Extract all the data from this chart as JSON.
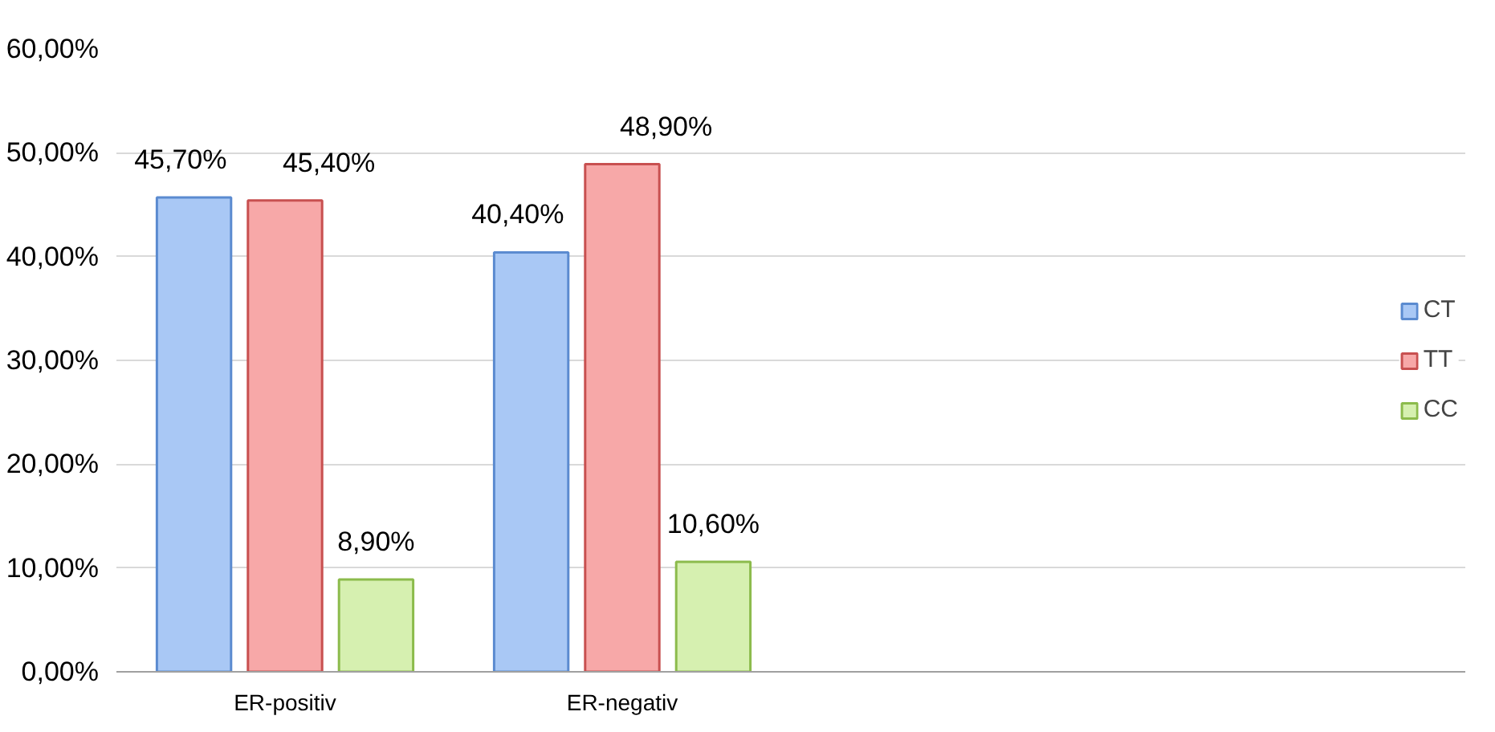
{
  "chart_data": {
    "type": "bar",
    "categories": [
      "ER-positiv",
      "ER-negativ",
      null,
      null
    ],
    "series": [
      {
        "name": "CT",
        "color": "#a9c8f5",
        "values": [
          45.7,
          40.4,
          null,
          null
        ],
        "value_labels": [
          "45,70%",
          "40,40%",
          null,
          null
        ]
      },
      {
        "name": "TT",
        "color": "#f7a8a8",
        "values": [
          45.4,
          48.9,
          null,
          null
        ],
        "value_labels": [
          "45,40%",
          "48,90%",
          null,
          null
        ]
      },
      {
        "name": "CC",
        "color": "#d6f0b0",
        "values": [
          8.9,
          10.6,
          null,
          null
        ],
        "value_labels": [
          "8,90%",
          "10,60%",
          null,
          null
        ]
      }
    ],
    "ylim": [
      0,
      60
    ],
    "yticks": [
      {
        "value": 0,
        "label": "0,00%"
      },
      {
        "value": 10,
        "label": "10,00%"
      },
      {
        "value": 20,
        "label": "20,00%"
      },
      {
        "value": 30,
        "label": "30,00%"
      },
      {
        "value": 40,
        "label": "40,00%"
      },
      {
        "value": 50,
        "label": "50,00%"
      },
      {
        "value": 60,
        "label": "60,00%"
      }
    ],
    "grid": "y",
    "legend": "right"
  }
}
